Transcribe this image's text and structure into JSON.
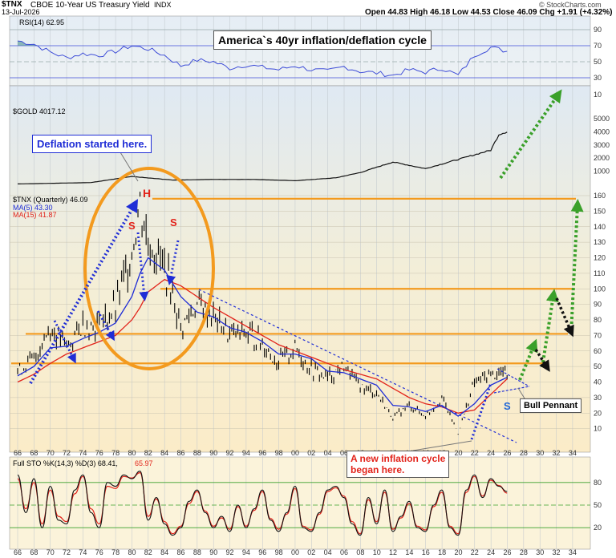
{
  "header": {
    "ticker": "$TNX",
    "description": "CBOE 10-Year US Treasury Yield",
    "exchange": "INDX",
    "date": "13-Jul-2026",
    "quote": "Open 44.83  High 46.18  Low 44.53  Close 46.09  Chg +1.91 (+4.32%)",
    "source": "© StockCharts.com"
  },
  "annotations": {
    "title": "America`s 40yr inflation/deflation cycle",
    "deflation": "Deflation started here.",
    "inflation_line1": "A new inflation cycle",
    "inflation_line2": "began here.",
    "bull_pennant": "Bull Pennant",
    "H": "H",
    "S1": "S",
    "S2": "S",
    "S3": "S"
  },
  "panels": {
    "rsi_label": "RSI(14) 62.95",
    "gold_label": "$GOLD 4017.12",
    "tnx_label": "$TNX (Quarterly) 46.09",
    "ma5_label": "MA(5) 43.30",
    "ma15_label": "MA(15) 41.87",
    "sto_label": "Full STO %K(14,3) %D(3) 68.41,",
    "sto_d_value": "65.97"
  },
  "colors": {
    "bg_top": "#dfe9f3",
    "bg_bottom": "#fbecc8",
    "price": "#000000",
    "ma5": "#1f2dd6",
    "ma15": "#e2231a",
    "orange": "#f39a1e",
    "green_arrow": "#3aa02a",
    "blue_dotted": "#1f2dd6",
    "rsi_line": "#3f4ed8",
    "rsi_fill": "#4a8f8f"
  },
  "chart_data": [
    {
      "type": "line",
      "name": "TNX quarterly",
      "x": [
        1966,
        1968,
        1970,
        1972,
        1974,
        1976,
        1978,
        1980,
        1981,
        1982,
        1984,
        1986,
        1988,
        1990,
        1992,
        1994,
        1996,
        1998,
        2000,
        2002,
        2004,
        2006,
        2008,
        2010,
        2012,
        2014,
        2016,
        2018,
        2020,
        2022,
        2024,
        2026
      ],
      "values": [
        47,
        55,
        75,
        63,
        77,
        76,
        87,
        125,
        155,
        130,
        115,
        75,
        90,
        82,
        70,
        72,
        65,
        52,
        62,
        48,
        43,
        50,
        37,
        33,
        17,
        25,
        18,
        30,
        7,
        40,
        45,
        46
      ],
      "ma5": [
        44,
        50,
        62,
        63,
        68,
        72,
        78,
        95,
        110,
        120,
        112,
        95,
        85,
        82,
        75,
        72,
        66,
        58,
        58,
        55,
        47,
        46,
        42,
        38,
        25,
        24,
        21,
        25,
        18,
        26,
        38,
        43
      ],
      "ma15": [
        40,
        45,
        52,
        58,
        62,
        66,
        70,
        80,
        88,
        98,
        106,
        102,
        95,
        88,
        82,
        76,
        70,
        64,
        60,
        56,
        52,
        48,
        45,
        42,
        36,
        30,
        26,
        24,
        20,
        22,
        32,
        42
      ],
      "ylim": [
        0,
        165
      ],
      "yticks": [
        10,
        20,
        30,
        40,
        50,
        60,
        70,
        80,
        90,
        100,
        110,
        120,
        130,
        140,
        150,
        160
      ],
      "xticks": [
        "66",
        "68",
        "70",
        "72",
        "74",
        "76",
        "78",
        "80",
        "82",
        "84",
        "86",
        "88",
        "90",
        "92",
        "94",
        "96",
        "98",
        "00",
        "02",
        "04",
        "06",
        "08",
        "10",
        "12",
        "14",
        "16",
        "18",
        "20",
        "22",
        "24",
        "26",
        "28",
        "30",
        "32",
        "34"
      ],
      "horizontal_levels": [
        158,
        100,
        71,
        52
      ]
    },
    {
      "type": "line",
      "name": "$GOLD",
      "x": [
        1966,
        1975,
        1980,
        1985,
        1990,
        1995,
        2000,
        2005,
        2008,
        2012,
        2016,
        2020,
        2024,
        2025,
        2026
      ],
      "values": [
        35,
        140,
        600,
        330,
        380,
        380,
        280,
        500,
        900,
        1700,
        1200,
        1900,
        2600,
        3800,
        4017
      ],
      "yticks": [
        1000,
        2000,
        3000,
        4000,
        5000,
        10
      ]
    },
    {
      "type": "line",
      "name": "RSI(14)",
      "x": [
        1966,
        1968,
        1970,
        1972,
        1974,
        1976,
        1978,
        1980,
        1982,
        1984,
        1986,
        1988,
        1990,
        1992,
        1994,
        1996,
        1998,
        2000,
        2002,
        2004,
        2006,
        2008,
        2010,
        2012,
        2014,
        2016,
        2018,
        2020,
        2022,
        2024,
        2026
      ],
      "values": [
        76,
        72,
        62,
        55,
        60,
        58,
        63,
        70,
        66,
        58,
        45,
        52,
        50,
        42,
        46,
        43,
        40,
        45,
        40,
        38,
        44,
        38,
        36,
        33,
        40,
        37,
        42,
        33,
        58,
        68,
        63
      ],
      "ylim": [
        30,
        90
      ],
      "yticks": [
        30,
        50,
        70,
        90
      ]
    },
    {
      "type": "line",
      "name": "Full STO",
      "x": [
        1966,
        1967,
        1968,
        1969,
        1970,
        1971,
        1972,
        1973,
        1974,
        1975,
        1976,
        1977,
        1978,
        1979,
        1980,
        1981,
        1982,
        1983,
        1984,
        1985,
        1986,
        1987,
        1988,
        1989,
        1990,
        1991,
        1992,
        1993,
        1994,
        1995,
        1996,
        1997,
        1998,
        1999,
        2000,
        2001,
        2002,
        2003,
        2004,
        2005,
        2006,
        2007,
        2008,
        2009,
        2010,
        2011,
        2012,
        2013,
        2014,
        2015,
        2016,
        2017,
        2018,
        2019,
        2020,
        2021,
        2022,
        2023,
        2024,
        2025,
        2026
      ],
      "k": [
        90,
        40,
        85,
        20,
        75,
        30,
        25,
        70,
        90,
        40,
        20,
        80,
        75,
        90,
        85,
        95,
        30,
        60,
        25,
        10,
        20,
        55,
        70,
        40,
        20,
        35,
        15,
        50,
        20,
        45,
        70,
        30,
        15,
        40,
        75,
        20,
        15,
        40,
        70,
        75,
        60,
        25,
        10,
        60,
        25,
        70,
        15,
        35,
        55,
        20,
        15,
        50,
        70,
        20,
        10,
        70,
        90,
        60,
        85,
        75,
        68
      ],
      "d": [
        85,
        45,
        80,
        25,
        70,
        35,
        28,
        65,
        88,
        45,
        25,
        75,
        72,
        88,
        86,
        93,
        35,
        58,
        28,
        12,
        22,
        52,
        68,
        42,
        22,
        33,
        18,
        48,
        22,
        43,
        68,
        32,
        18,
        38,
        72,
        22,
        17,
        38,
        68,
        73,
        62,
        28,
        12,
        57,
        28,
        67,
        18,
        33,
        52,
        22,
        17,
        48,
        67,
        22,
        12,
        67,
        88,
        62,
        83,
        76,
        66
      ],
      "ylim": [
        0,
        100
      ],
      "yticks": [
        20,
        50,
        80
      ]
    }
  ]
}
